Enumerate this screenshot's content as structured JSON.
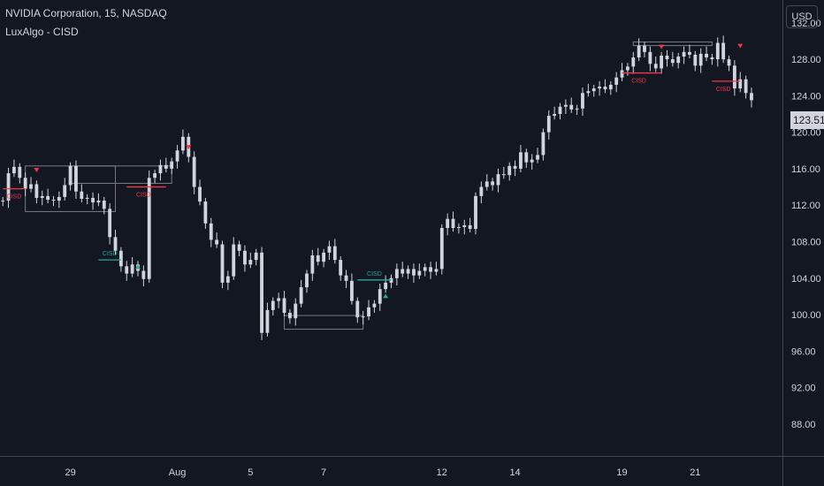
{
  "header": {
    "symbol_line": "NVIDIA Corporation, 15, NASDAQ",
    "indicator_line": "LuxAlgo - CISD"
  },
  "currency_label": "USD",
  "last_price": "123.51",
  "colors": {
    "background": "#131722",
    "candle": "#d1d4dc",
    "bear_cisd": "#f23645",
    "bull_cisd": "#26a69a",
    "range_box": "#787b86",
    "axis_text": "#d1d4dc",
    "axis_line": "#434651"
  },
  "chart_data": {
    "type": "candlestick",
    "title": "NVIDIA Corporation, 15, NASDAQ",
    "indicator": "LuxAlgo - CISD",
    "y_axis": {
      "side": "right",
      "ticks": [
        "132.00",
        "128.00",
        "124.00",
        "120.00",
        "116.00",
        "112.00",
        "108.00",
        "104.00",
        "100.00",
        "96.00",
        "92.00",
        "88.00"
      ],
      "tick_values": [
        132,
        128,
        124,
        120,
        116,
        112,
        108,
        104,
        100,
        96,
        92,
        88
      ],
      "range": [
        84.5,
        134.5
      ]
    },
    "x_axis": {
      "tick_labels": [
        "29",
        "Aug",
        "5",
        "7",
        "12",
        "14",
        "19",
        "21"
      ],
      "tick_index": [
        12,
        31,
        44,
        57,
        78,
        91,
        110,
        123
      ],
      "range": [
        -0.5,
        138.5
      ]
    },
    "grid": false,
    "price_series": [
      {
        "i": 0,
        "c": 112.5
      },
      {
        "i": 1,
        "c": 115.5
      },
      {
        "i": 2,
        "c": 116.2
      },
      {
        "i": 3,
        "c": 115.0
      },
      {
        "i": 4,
        "c": 113.8
      },
      {
        "i": 5,
        "c": 114.3
      },
      {
        "i": 6,
        "c": 112.8
      },
      {
        "i": 7,
        "c": 113.0
      },
      {
        "i": 8,
        "c": 112.6
      },
      {
        "i": 9,
        "c": 112.5
      },
      {
        "i": 10,
        "c": 112.9
      },
      {
        "i": 11,
        "c": 114.2
      },
      {
        "i": 12,
        "c": 116.3
      },
      {
        "i": 13,
        "c": 113.5
      },
      {
        "i": 14,
        "c": 112.7
      },
      {
        "i": 15,
        "c": 112.8
      },
      {
        "i": 16,
        "c": 112.3
      },
      {
        "i": 17,
        "c": 112.5
      },
      {
        "i": 18,
        "c": 111.6
      },
      {
        "i": 19,
        "c": 108.5
      },
      {
        "i": 20,
        "c": 107.0
      },
      {
        "i": 21,
        "c": 105.3
      },
      {
        "i": 22,
        "c": 104.5
      },
      {
        "i": 23,
        "c": 105.5
      },
      {
        "i": 24,
        "c": 104.8
      },
      {
        "i": 25,
        "c": 103.9
      },
      {
        "i": 26,
        "c": 115.0
      },
      {
        "i": 27,
        "c": 115.5
      },
      {
        "i": 28,
        "c": 116.4
      },
      {
        "i": 29,
        "c": 116.0
      },
      {
        "i": 30,
        "c": 116.8
      },
      {
        "i": 31,
        "c": 118.0
      },
      {
        "i": 32,
        "c": 119.5
      },
      {
        "i": 33,
        "c": 117.3
      },
      {
        "i": 34,
        "c": 114.0
      },
      {
        "i": 35,
        "c": 112.4
      },
      {
        "i": 36,
        "c": 110.0
      },
      {
        "i": 37,
        "c": 108.2
      },
      {
        "i": 38,
        "c": 107.7
      },
      {
        "i": 39,
        "c": 103.5
      },
      {
        "i": 40,
        "c": 104.2
      },
      {
        "i": 41,
        "c": 107.7
      },
      {
        "i": 42,
        "c": 107.0
      },
      {
        "i": 43,
        "c": 105.5
      },
      {
        "i": 44,
        "c": 106.0
      },
      {
        "i": 45,
        "c": 106.8
      },
      {
        "i": 46,
        "c": 98.0
      },
      {
        "i": 47,
        "c": 100.5
      },
      {
        "i": 48,
        "c": 101.5
      },
      {
        "i": 49,
        "c": 101.8
      },
      {
        "i": 50,
        "c": 100.2
      },
      {
        "i": 51,
        "c": 99.6
      },
      {
        "i": 52,
        "c": 101.2
      },
      {
        "i": 53,
        "c": 103.0
      },
      {
        "i": 54,
        "c": 104.5
      },
      {
        "i": 55,
        "c": 106.5
      },
      {
        "i": 56,
        "c": 105.8
      },
      {
        "i": 57,
        "c": 106.8
      },
      {
        "i": 58,
        "c": 107.5
      },
      {
        "i": 59,
        "c": 106.0
      },
      {
        "i": 60,
        "c": 104.3
      },
      {
        "i": 61,
        "c": 103.7
      },
      {
        "i": 62,
        "c": 101.5
      },
      {
        "i": 63,
        "c": 99.7
      },
      {
        "i": 64,
        "c": 99.8
      },
      {
        "i": 65,
        "c": 100.8
      },
      {
        "i": 66,
        "c": 101.2
      },
      {
        "i": 67,
        "c": 102.8
      },
      {
        "i": 68,
        "c": 103.5
      },
      {
        "i": 69,
        "c": 104.0
      },
      {
        "i": 70,
        "c": 105.0
      },
      {
        "i": 71,
        "c": 104.5
      },
      {
        "i": 72,
        "c": 105.0
      },
      {
        "i": 73,
        "c": 104.3
      },
      {
        "i": 74,
        "c": 104.8
      },
      {
        "i": 75,
        "c": 105.2
      },
      {
        "i": 76,
        "c": 104.7
      },
      {
        "i": 77,
        "c": 105.0
      },
      {
        "i": 78,
        "c": 109.5
      },
      {
        "i": 79,
        "c": 110.5
      },
      {
        "i": 80,
        "c": 109.5
      },
      {
        "i": 81,
        "c": 109.6
      },
      {
        "i": 82,
        "c": 109.8
      },
      {
        "i": 83,
        "c": 109.4
      },
      {
        "i": 84,
        "c": 113.0
      },
      {
        "i": 85,
        "c": 114.0
      },
      {
        "i": 86,
        "c": 114.6
      },
      {
        "i": 87,
        "c": 114.2
      },
      {
        "i": 88,
        "c": 115.4
      },
      {
        "i": 89,
        "c": 115.3
      },
      {
        "i": 90,
        "c": 116.3
      },
      {
        "i": 91,
        "c": 116.0
      },
      {
        "i": 92,
        "c": 117.8
      },
      {
        "i": 93,
        "c": 116.7
      },
      {
        "i": 94,
        "c": 117.0
      },
      {
        "i": 95,
        "c": 117.5
      },
      {
        "i": 96,
        "c": 120.0
      },
      {
        "i": 97,
        "c": 121.8
      },
      {
        "i": 98,
        "c": 122.0
      },
      {
        "i": 99,
        "c": 122.8
      },
      {
        "i": 100,
        "c": 123.0
      },
      {
        "i": 101,
        "c": 122.5
      },
      {
        "i": 102,
        "c": 122.6
      },
      {
        "i": 103,
        "c": 124.3
      },
      {
        "i": 104,
        "c": 124.5
      },
      {
        "i": 105,
        "c": 124.8
      },
      {
        "i": 106,
        "c": 125.0
      },
      {
        "i": 107,
        "c": 124.7
      },
      {
        "i": 108,
        "c": 125.2
      },
      {
        "i": 109,
        "c": 126.0
      },
      {
        "i": 110,
        "c": 126.8
      },
      {
        "i": 111,
        "c": 127.2
      },
      {
        "i": 112,
        "c": 128.2
      },
      {
        "i": 113,
        "c": 129.5
      },
      {
        "i": 114,
        "c": 128.8
      },
      {
        "i": 115,
        "c": 127.5
      },
      {
        "i": 116,
        "c": 127.0
      },
      {
        "i": 117,
        "c": 128.4
      },
      {
        "i": 118,
        "c": 128.0
      },
      {
        "i": 119,
        "c": 127.6
      },
      {
        "i": 120,
        "c": 128.3
      },
      {
        "i": 121,
        "c": 128.8
      },
      {
        "i": 122,
        "c": 128.5
      },
      {
        "i": 123,
        "c": 127.3
      },
      {
        "i": 124,
        "c": 128.6
      },
      {
        "i": 125,
        "c": 128.2
      },
      {
        "i": 126,
        "c": 128.0
      },
      {
        "i": 127,
        "c": 129.8
      },
      {
        "i": 128,
        "c": 128.0
      },
      {
        "i": 129,
        "c": 127.3
      },
      {
        "i": 130,
        "c": 124.8
      },
      {
        "i": 131,
        "c": 125.8
      },
      {
        "i": 132,
        "c": 124.3
      },
      {
        "i": 133,
        "c": 123.51
      }
    ],
    "cisd_markers": [
      {
        "label": "CISD",
        "kind": "bearish",
        "i1": 0,
        "i2": 4,
        "level": 113.8,
        "label_at": 2
      },
      {
        "label": "CISD",
        "kind": "bearish",
        "i1": 22,
        "i2": 29,
        "level": 114.0,
        "label_at": 25
      },
      {
        "label": "CISD",
        "kind": "bullish",
        "i1": 17,
        "i2": 21,
        "level": 106.0,
        "label_at": 19
      },
      {
        "label": "CISD",
        "kind": "bullish",
        "i1": 63,
        "i2": 69,
        "level": 103.8,
        "label_at": 66
      },
      {
        "label": "CISD",
        "kind": "bearish",
        "i1": 110,
        "i2": 117,
        "level": 126.5,
        "label_at": 113
      },
      {
        "label": "CISD",
        "kind": "bearish",
        "i1": 126,
        "i2": 131,
        "level": 125.6,
        "label_at": 128
      }
    ],
    "range_boxes": [
      {
        "i1": 4,
        "i2": 20,
        "top": 116.3,
        "bottom": 111.3
      },
      {
        "i1": 12,
        "i2": 30,
        "top": 116.3,
        "bottom": 114.4
      },
      {
        "i1": 50,
        "i2": 64,
        "top": 99.9,
        "bottom": 98.4
      },
      {
        "i1": 112,
        "i2": 126,
        "top": 129.9,
        "bottom": 129.5
      }
    ],
    "triangles": [
      {
        "i": 6,
        "price": 115.8,
        "dir": "down"
      },
      {
        "i": 33,
        "price": 118.3,
        "dir": "down"
      },
      {
        "i": 24,
        "price": 105.2,
        "dir": "up"
      },
      {
        "i": 68,
        "price": 102.0,
        "dir": "up"
      },
      {
        "i": 117,
        "price": 129.3,
        "dir": "down"
      },
      {
        "i": 131,
        "price": 129.4,
        "dir": "down"
      }
    ]
  }
}
